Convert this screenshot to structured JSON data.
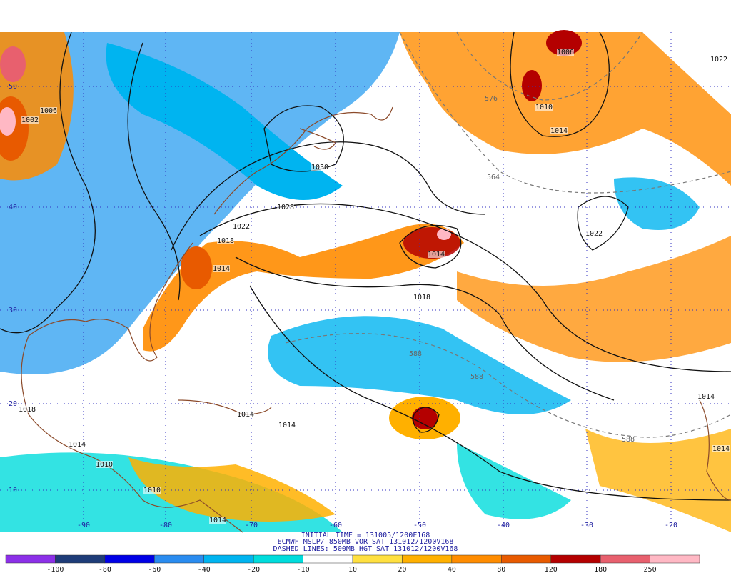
{
  "title_lines": [
    "INITIAL TIME = 131005/1200F168",
    "ECMWF MSLP/ 850MB VOR SAT 131012/1200V168",
    "DASHED LINES: 500MB HGT SAT 131012/1200V168"
  ],
  "latitude_labels": [
    50,
    40,
    30,
    20,
    10
  ],
  "longitude_labels": [
    -90,
    -80,
    -70,
    -60,
    -50,
    -40,
    -30,
    -20
  ],
  "isobar_labels": [
    1006,
    1010,
    1014,
    1022,
    1002,
    1006,
    1030,
    1028,
    1022,
    1018,
    1014,
    1014,
    1022,
    1018,
    1014,
    1014,
    1014,
    1018,
    1014,
    1010,
    1010,
    1014,
    1014
  ],
  "height_labels": [
    576,
    564,
    588,
    588,
    588
  ],
  "colorbar": {
    "labels": [
      -100,
      -80,
      -60,
      -40,
      -20,
      -10,
      10,
      20,
      40,
      80,
      120,
      180,
      250
    ],
    "colors": [
      "#8c30e8",
      "#1e3c78",
      "#0000e6",
      "#2a8cf0",
      "#00b4f0",
      "#00dcdc",
      "#ffffff",
      "#ffe040",
      "#ffb000",
      "#ff8c00",
      "#e85a00",
      "#b40000",
      "#e8606e",
      "#ffb8c4"
    ]
  }
}
